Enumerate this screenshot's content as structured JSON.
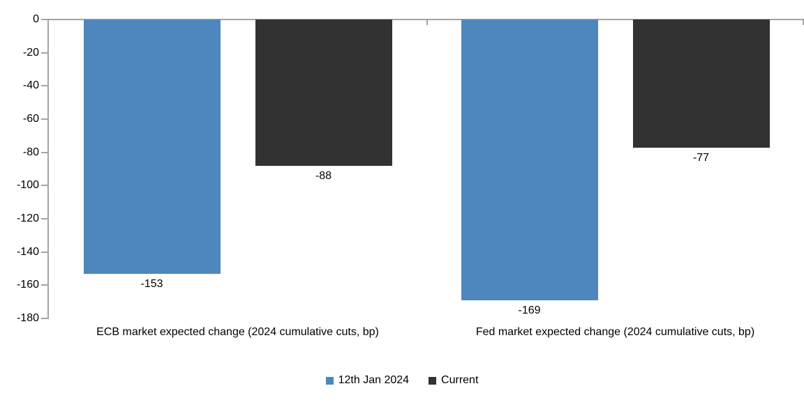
{
  "chart_data": {
    "type": "bar",
    "title": "",
    "categories": [
      "ECB market expected change (2024 cumulative cuts, bp)",
      "Fed market expected change (2024 cumulative cuts, bp)"
    ],
    "series": [
      {
        "name": "12th Jan 2024",
        "color": "#4e86be",
        "values": [
          -153,
          -169
        ]
      },
      {
        "name": "Current",
        "color": "#323232",
        "values": [
          -88,
          -77
        ]
      }
    ],
    "data_labels": [
      [
        "-153",
        "-169"
      ],
      [
        "-88",
        "-77"
      ]
    ],
    "y_axis": {
      "min": -180,
      "max": 0,
      "step": 20,
      "ticks": [
        "0",
        "-20",
        "-40",
        "-60",
        "-80",
        "-100",
        "-120",
        "-140",
        "-160",
        "-180"
      ]
    },
    "xlabel": "",
    "ylabel": "",
    "grid": false,
    "legend_position": "bottom",
    "axis_color": "#a3a3a3",
    "text_color": "#000000"
  }
}
